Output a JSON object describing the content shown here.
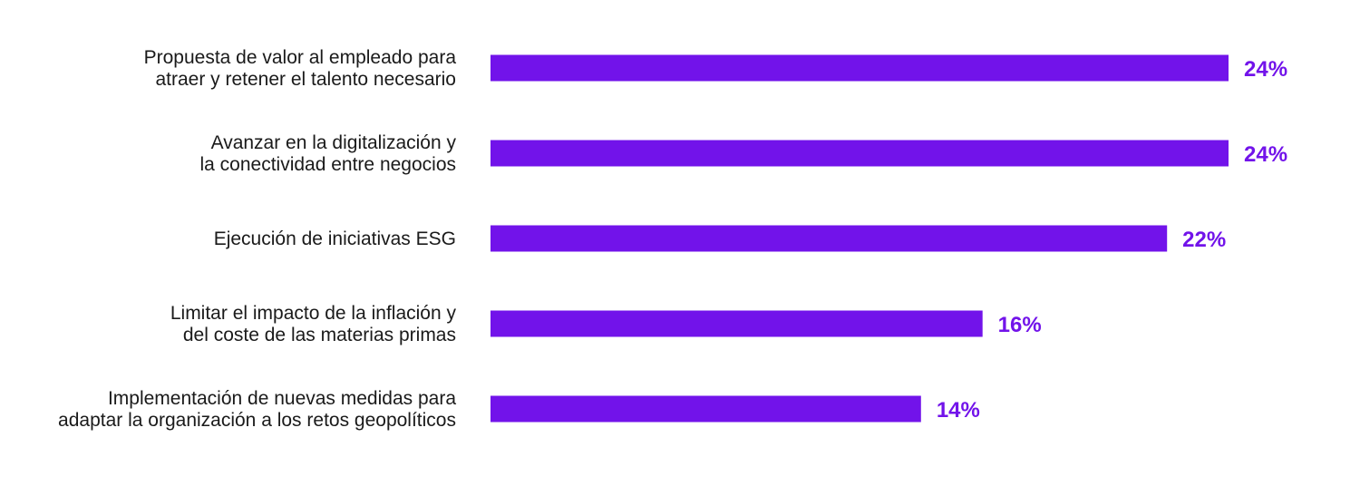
{
  "chart_data": {
    "type": "bar",
    "orientation": "horizontal",
    "categories": [
      [
        "Propuesta de valor al empleado para",
        "atraer y retener el talento necesario"
      ],
      [
        "Avanzar en la digitalización y",
        "la conectividad entre negocios"
      ],
      [
        "Ejecución de iniciativas ESG"
      ],
      [
        "Limitar el impacto de la inflación y",
        "del coste de las materias primas"
      ],
      [
        "Implementación de nuevas medidas para",
        "adaptar la organización a los retos geopolíticos"
      ]
    ],
    "values": [
      24,
      24,
      22,
      16,
      14
    ],
    "value_labels": [
      "24%",
      "24%",
      "22%",
      "16%",
      "14%"
    ],
    "unit": "%",
    "bar_color": "#7213ea",
    "label_color": "#7213ea",
    "text_color": "#1a1a1a",
    "title": "",
    "xlabel": "",
    "ylabel": "",
    "xlim": [
      0,
      24
    ],
    "grid": false,
    "legend": "none"
  }
}
